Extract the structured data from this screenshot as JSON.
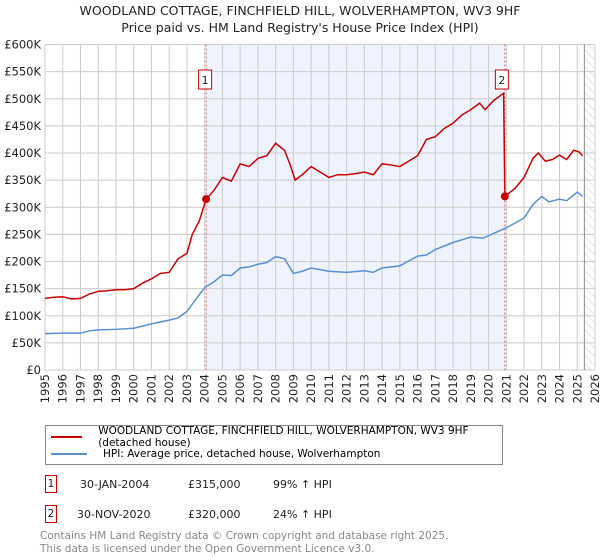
{
  "chart_data": {
    "type": "line",
    "title": "WOODLAND COTTAGE, FINCHFIELD HILL, WOLVERHAMPTON, WV3 9HF",
    "subtitle": "Price paid vs. HM Land Registry's House Price Index (HPI)",
    "xlim": [
      1995,
      2026
    ],
    "ylim": [
      0,
      600000
    ],
    "x_ticks": [
      "1995",
      "1996",
      "1997",
      "1998",
      "1999",
      "2000",
      "2001",
      "2002",
      "2003",
      "2004",
      "2005",
      "2006",
      "2007",
      "2008",
      "2009",
      "2010",
      "2011",
      "2012",
      "2013",
      "2014",
      "2015",
      "2016",
      "2017",
      "2018",
      "2019",
      "2020",
      "2021",
      "2022",
      "2023",
      "2024",
      "2025",
      "2026"
    ],
    "y_ticks": [
      {
        "v": 0,
        "label": "£0"
      },
      {
        "v": 50000,
        "label": "£50K"
      },
      {
        "v": 100000,
        "label": "£100K"
      },
      {
        "v": 150000,
        "label": "£150K"
      },
      {
        "v": 200000,
        "label": "£200K"
      },
      {
        "v": 250000,
        "label": "£250K"
      },
      {
        "v": 300000,
        "label": "£300K"
      },
      {
        "v": 350000,
        "label": "£350K"
      },
      {
        "v": 400000,
        "label": "£400K"
      },
      {
        "v": 450000,
        "label": "£450K"
      },
      {
        "v": 500000,
        "label": "£500K"
      },
      {
        "v": 550000,
        "label": "£550K"
      },
      {
        "v": 600000,
        "label": "£600K"
      }
    ],
    "grid": true,
    "shaded_range": [
      2004.08,
      2020.92
    ],
    "hatched_from": 2025.4,
    "series": [
      {
        "name": "WOODLAND COTTAGE, FINCHFIELD HILL, WOLVERHAMPTON, WV3 9HF (detached house)",
        "color": "#cc0000",
        "points": [
          [
            1995,
            132
          ],
          [
            1995.5,
            134
          ],
          [
            1996,
            135
          ],
          [
            1996.5,
            131
          ],
          [
            1997,
            132
          ],
          [
            1997.5,
            140
          ],
          [
            1998,
            145
          ],
          [
            1998.5,
            146
          ],
          [
            1999,
            148
          ],
          [
            1999.5,
            148
          ],
          [
            2000,
            150
          ],
          [
            2000.5,
            160
          ],
          [
            2001,
            168
          ],
          [
            2001.5,
            178
          ],
          [
            2002,
            180
          ],
          [
            2002.5,
            205
          ],
          [
            2003,
            215
          ],
          [
            2003.3,
            250
          ],
          [
            2003.7,
            275
          ],
          [
            2004.08,
            315
          ],
          [
            2004.5,
            330
          ],
          [
            2005,
            355
          ],
          [
            2005.5,
            348
          ],
          [
            2006,
            380
          ],
          [
            2006.5,
            375
          ],
          [
            2007,
            390
          ],
          [
            2007.5,
            395
          ],
          [
            2008,
            418
          ],
          [
            2008.5,
            405
          ],
          [
            2008.8,
            380
          ],
          [
            2009.1,
            350
          ],
          [
            2009.5,
            360
          ],
          [
            2010,
            375
          ],
          [
            2010.5,
            365
          ],
          [
            2011,
            355
          ],
          [
            2011.5,
            360
          ],
          [
            2012,
            360
          ],
          [
            2012.5,
            362
          ],
          [
            2013,
            365
          ],
          [
            2013.5,
            360
          ],
          [
            2014,
            380
          ],
          [
            2014.5,
            378
          ],
          [
            2015,
            375
          ],
          [
            2015.5,
            385
          ],
          [
            2016,
            395
          ],
          [
            2016.5,
            425
          ],
          [
            2017,
            430
          ],
          [
            2017.5,
            445
          ],
          [
            2018,
            455
          ],
          [
            2018.5,
            470
          ],
          [
            2019,
            480
          ],
          [
            2019.5,
            492
          ],
          [
            2019.8,
            480
          ],
          [
            2020.3,
            497
          ],
          [
            2020.85,
            510
          ],
          [
            2020.92,
            320
          ],
          [
            2021.5,
            335
          ],
          [
            2022,
            355
          ],
          [
            2022.5,
            390
          ],
          [
            2022.8,
            400
          ],
          [
            2023.2,
            385
          ],
          [
            2023.6,
            388
          ],
          [
            2024,
            396
          ],
          [
            2024.4,
            388
          ],
          [
            2024.8,
            405
          ],
          [
            2025.1,
            402
          ],
          [
            2025.3,
            395
          ]
        ]
      },
      {
        "name": "HPI: Average price, detached house, Wolverhampton",
        "color": "#5b8fd4",
        "points": [
          [
            1995,
            67
          ],
          [
            1996,
            68
          ],
          [
            1997,
            68
          ],
          [
            1997.5,
            72
          ],
          [
            1998,
            74
          ],
          [
            1999,
            75
          ],
          [
            2000,
            77
          ],
          [
            2001,
            85
          ],
          [
            2002,
            92
          ],
          [
            2002.5,
            96
          ],
          [
            2003,
            108
          ],
          [
            2003.5,
            130
          ],
          [
            2004,
            152
          ],
          [
            2004.5,
            162
          ],
          [
            2005,
            175
          ],
          [
            2005.5,
            174
          ],
          [
            2006,
            188
          ],
          [
            2006.5,
            190
          ],
          [
            2007,
            195
          ],
          [
            2007.5,
            198
          ],
          [
            2008,
            209
          ],
          [
            2008.5,
            205
          ],
          [
            2009,
            178
          ],
          [
            2009.5,
            182
          ],
          [
            2010,
            188
          ],
          [
            2010.5,
            185
          ],
          [
            2011,
            182
          ],
          [
            2012,
            180
          ],
          [
            2013,
            183
          ],
          [
            2013.5,
            180
          ],
          [
            2014,
            188
          ],
          [
            2015,
            192
          ],
          [
            2016,
            210
          ],
          [
            2016.5,
            212
          ],
          [
            2017,
            222
          ],
          [
            2018,
            235
          ],
          [
            2019,
            245
          ],
          [
            2019.7,
            243
          ],
          [
            2020.3,
            252
          ],
          [
            2021,
            262
          ],
          [
            2022,
            280
          ],
          [
            2022.5,
            305
          ],
          [
            2023,
            320
          ],
          [
            2023.4,
            310
          ],
          [
            2024,
            315
          ],
          [
            2024.4,
            312
          ],
          [
            2025,
            328
          ],
          [
            2025.3,
            320
          ]
        ]
      }
    ],
    "annotations": [
      {
        "label": "1",
        "x": 2004.08,
        "y": 315000
      },
      {
        "label": "2",
        "x": 2020.92,
        "y": 320000
      }
    ]
  },
  "legend": {
    "items": [
      "WOODLAND COTTAGE, FINCHFIELD HILL, WOLVERHAMPTON, WV3 9HF (detached house)",
      "HPI: Average price, detached house, Wolverhampton"
    ]
  },
  "sales": [
    {
      "num": "1",
      "date": "30-JAN-2004",
      "price": "£315,000",
      "hpi": "99% ↑ HPI"
    },
    {
      "num": "2",
      "date": "30-NOV-2020",
      "price": "£320,000",
      "hpi": "24% ↑ HPI"
    }
  ],
  "footer": [
    "Contains HM Land Registry data © Crown copyright and database right 2025.",
    "This data is licensed under the Open Government Licence v3.0."
  ],
  "colors": {
    "red": "#cc0000",
    "blue": "#5b8fd4",
    "shade": "#eef3fd"
  }
}
